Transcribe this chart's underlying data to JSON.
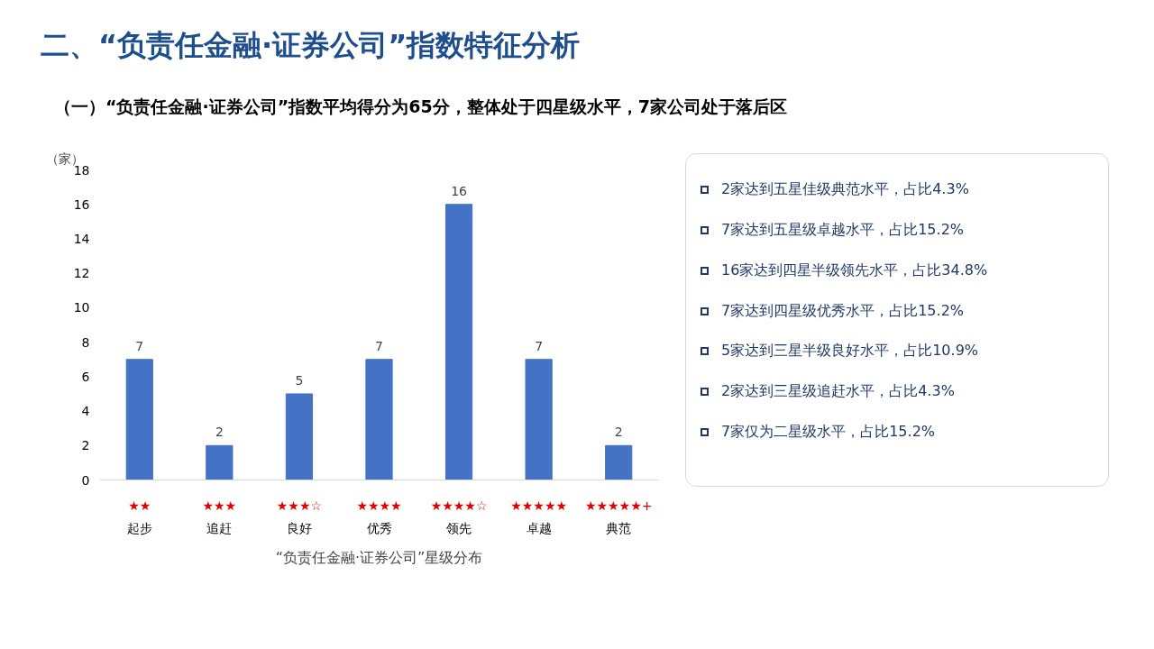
{
  "chart_data": {
    "type": "bar",
    "title": "二、“负责任金融·证券公司”指数特征分析",
    "subtitle": "（一）“负责任金融·证券公司”指数平均得分为65分，整体处于四星级水平，7家公司处于落后区",
    "xlabel": "“负责任金融·证券公司”星级分布",
    "ylabel": "（家）",
    "categories": [
      "★★\n起步",
      "★★★\n追赶",
      "★★★☆\n良好",
      "★★★★\n优秀",
      "★★★★☆\n领先",
      "★★★★★\n卓越",
      "★★★★★+\n典范"
    ],
    "values": [
      7,
      2,
      5,
      7,
      16,
      7,
      2
    ],
    "color": "#4472c4",
    "ylim": [
      0,
      18
    ],
    "yticks": [
      0,
      2,
      4,
      6,
      8,
      10,
      12,
      14,
      16,
      18
    ],
    "grid": false,
    "data_labels": true,
    "annotations": [
      "2家达到五星佳级典范水平，占比4.3%",
      "7家达到五星级卓越水平，占比15.2%",
      "16家达到四星半级领先水平，占比34.8%",
      "7家达到四星级优秀水平，占比15.2%",
      "5家达到三星半级良好水平，占比10.9%",
      "2家达到三星级追赶水平，占比4.3%",
      "7家仅为二星级水平，占比15.2%"
    ]
  }
}
